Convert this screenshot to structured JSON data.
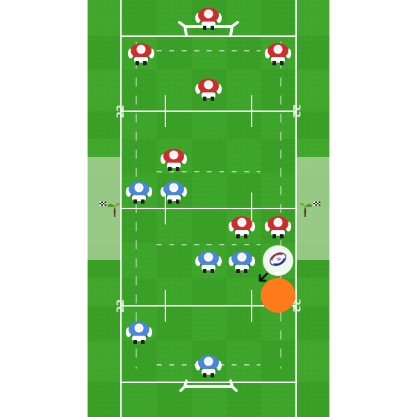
{
  "field": {
    "grass_dark": "#2f8f1f",
    "grass_mid": "#3a9f27",
    "grass_light": "#45ad31",
    "line_color": "#ffffff",
    "touch_zone_color": "#b9d8a8"
  },
  "markers": {
    "top_22": "22",
    "bottom_22": "22"
  },
  "teams": {
    "red": {
      "shirt": "#cf2d2d",
      "shorts": "#ffffff",
      "socks": "#1f1f1f"
    },
    "blue": {
      "shirt": "#4b86d8",
      "shorts": "#ffffff",
      "socks": "#1f1f1f"
    }
  },
  "ball_carrier": {
    "highlight_color": "#ff7a1a",
    "ball_bubble_color": "#ffffff",
    "ball_icon": "rugby-ball-icon",
    "direction_icon": "arrow-down-left-icon"
  },
  "sponsor_icon": "checkered-flag-plant-icon"
}
